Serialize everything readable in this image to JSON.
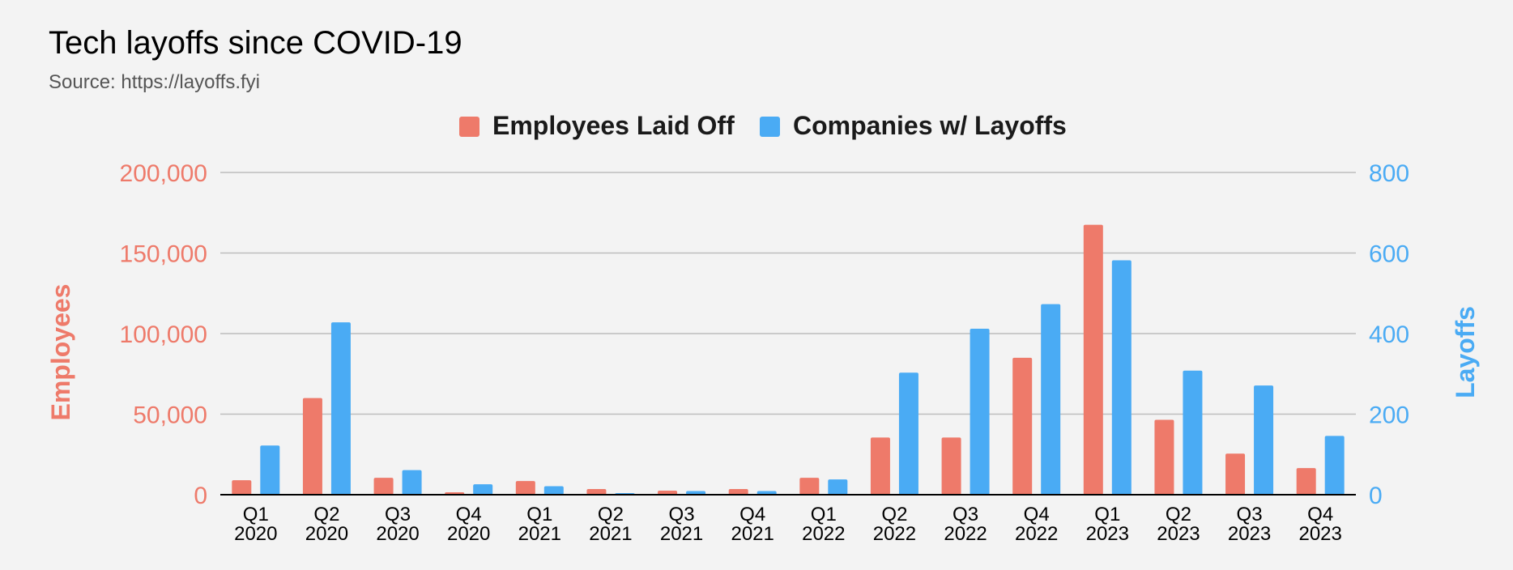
{
  "colors": {
    "employees": "#ee7a6a",
    "companies": "#4aabf4",
    "gridline": "#bdbdbd",
    "baseline": "#000000"
  },
  "chart_data": {
    "type": "bar",
    "title": "Tech layoffs since COVID-19",
    "subtitle": "Source: https://layoffs.fyi",
    "legend_position": "top",
    "grid": true,
    "categories": [
      [
        "Q1",
        "2020"
      ],
      [
        "Q2",
        "2020"
      ],
      [
        "Q3",
        "2020"
      ],
      [
        "Q4",
        "2020"
      ],
      [
        "Q1",
        "2021"
      ],
      [
        "Q2",
        "2021"
      ],
      [
        "Q3",
        "2021"
      ],
      [
        "Q4",
        "2021"
      ],
      [
        "Q1",
        "2022"
      ],
      [
        "Q2",
        "2022"
      ],
      [
        "Q3",
        "2022"
      ],
      [
        "Q4",
        "2022"
      ],
      [
        "Q1",
        "2023"
      ],
      [
        "Q2",
        "2023"
      ],
      [
        "Q3",
        "2023"
      ],
      [
        "Q4",
        "2023"
      ]
    ],
    "y_left": {
      "label": "Employees",
      "range": [
        0,
        200000
      ],
      "ticks": [
        0,
        50000,
        100000,
        150000,
        200000
      ],
      "tick_labels": [
        "0",
        "50,000",
        "100,000",
        "150,000",
        "200,000"
      ]
    },
    "y_right": {
      "label": "Layoffs",
      "range": [
        0,
        800
      ],
      "ticks": [
        0,
        200,
        400,
        600,
        800
      ],
      "tick_labels": [
        "0",
        "200",
        "400",
        "600",
        "800"
      ]
    },
    "series": [
      {
        "name": "Employees Laid Off",
        "axis": "left",
        "values": [
          9000,
          60000,
          10500,
          1500,
          8500,
          3500,
          2500,
          3500,
          10500,
          35500,
          35500,
          85000,
          167500,
          46500,
          25500,
          16500
        ]
      },
      {
        "name": "Companies w/ Layoffs",
        "axis": "right",
        "values": [
          122,
          428,
          61,
          26,
          21,
          4,
          9,
          9,
          38,
          303,
          412,
          473,
          582,
          308,
          271,
          146
        ]
      }
    ]
  }
}
